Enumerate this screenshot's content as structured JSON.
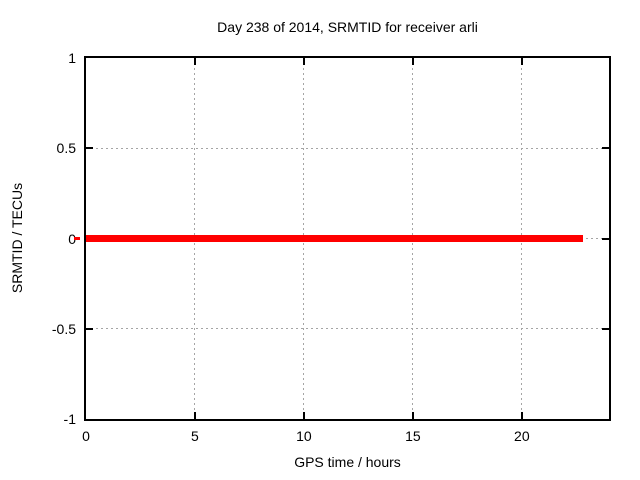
{
  "chart_data": {
    "type": "line",
    "title": "Day 238 of 2014, SRMTID for receiver arli",
    "xlabel": "GPS time / hours",
    "ylabel": "SRMTID / TECUs",
    "xlim": [
      0,
      24
    ],
    "ylim": [
      -1,
      1
    ],
    "xticks": [
      0,
      5,
      10,
      15,
      20
    ],
    "yticks": [
      1,
      0.5,
      0,
      -0.5,
      -1
    ],
    "xtick_labels": [
      "0",
      "5",
      "10",
      "15",
      "20"
    ],
    "ytick_labels": [
      "1",
      "0.5",
      "0",
      "-0.5",
      "-1"
    ],
    "grid": true,
    "legend": false,
    "series": [
      {
        "name": "SRMTID",
        "color": "#ff0000",
        "y_value": 0,
        "x_start": 0,
        "x_end": 22.8,
        "line_thickness_px": 7,
        "left_overshoot_dash": true
      }
    ]
  },
  "colors": {
    "background": "#ffffff",
    "border": "#000000",
    "text": "#000000",
    "grid": "#a5a5a5",
    "series": "#ff0000"
  }
}
